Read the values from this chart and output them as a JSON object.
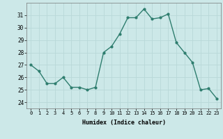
{
  "x": [
    0,
    1,
    2,
    3,
    4,
    5,
    6,
    7,
    8,
    9,
    10,
    11,
    12,
    13,
    14,
    15,
    16,
    17,
    18,
    19,
    20,
    21,
    22,
    23
  ],
  "y": [
    27.0,
    26.5,
    25.5,
    25.5,
    26.0,
    25.2,
    25.2,
    25.0,
    25.2,
    28.0,
    28.5,
    29.5,
    30.8,
    30.8,
    31.5,
    30.7,
    30.8,
    31.1,
    28.8,
    28.0,
    27.2,
    25.0,
    25.1,
    24.3
  ],
  "xlabel": "Humidex (Indice chaleur)",
  "ylim": [
    23.5,
    32.0
  ],
  "xlim": [
    -0.5,
    23.5
  ],
  "yticks": [
    24,
    25,
    26,
    27,
    28,
    29,
    30,
    31
  ],
  "xticks": [
    0,
    1,
    2,
    3,
    4,
    5,
    6,
    7,
    8,
    9,
    10,
    11,
    12,
    13,
    14,
    15,
    16,
    17,
    18,
    19,
    20,
    21,
    22,
    23
  ],
  "line_color": "#2e7d6e",
  "marker_color": "#2e7d6e",
  "bg_color": "#cce8e8",
  "grid_color": "#b8d8d8",
  "axes_bg": "#cce8e8"
}
